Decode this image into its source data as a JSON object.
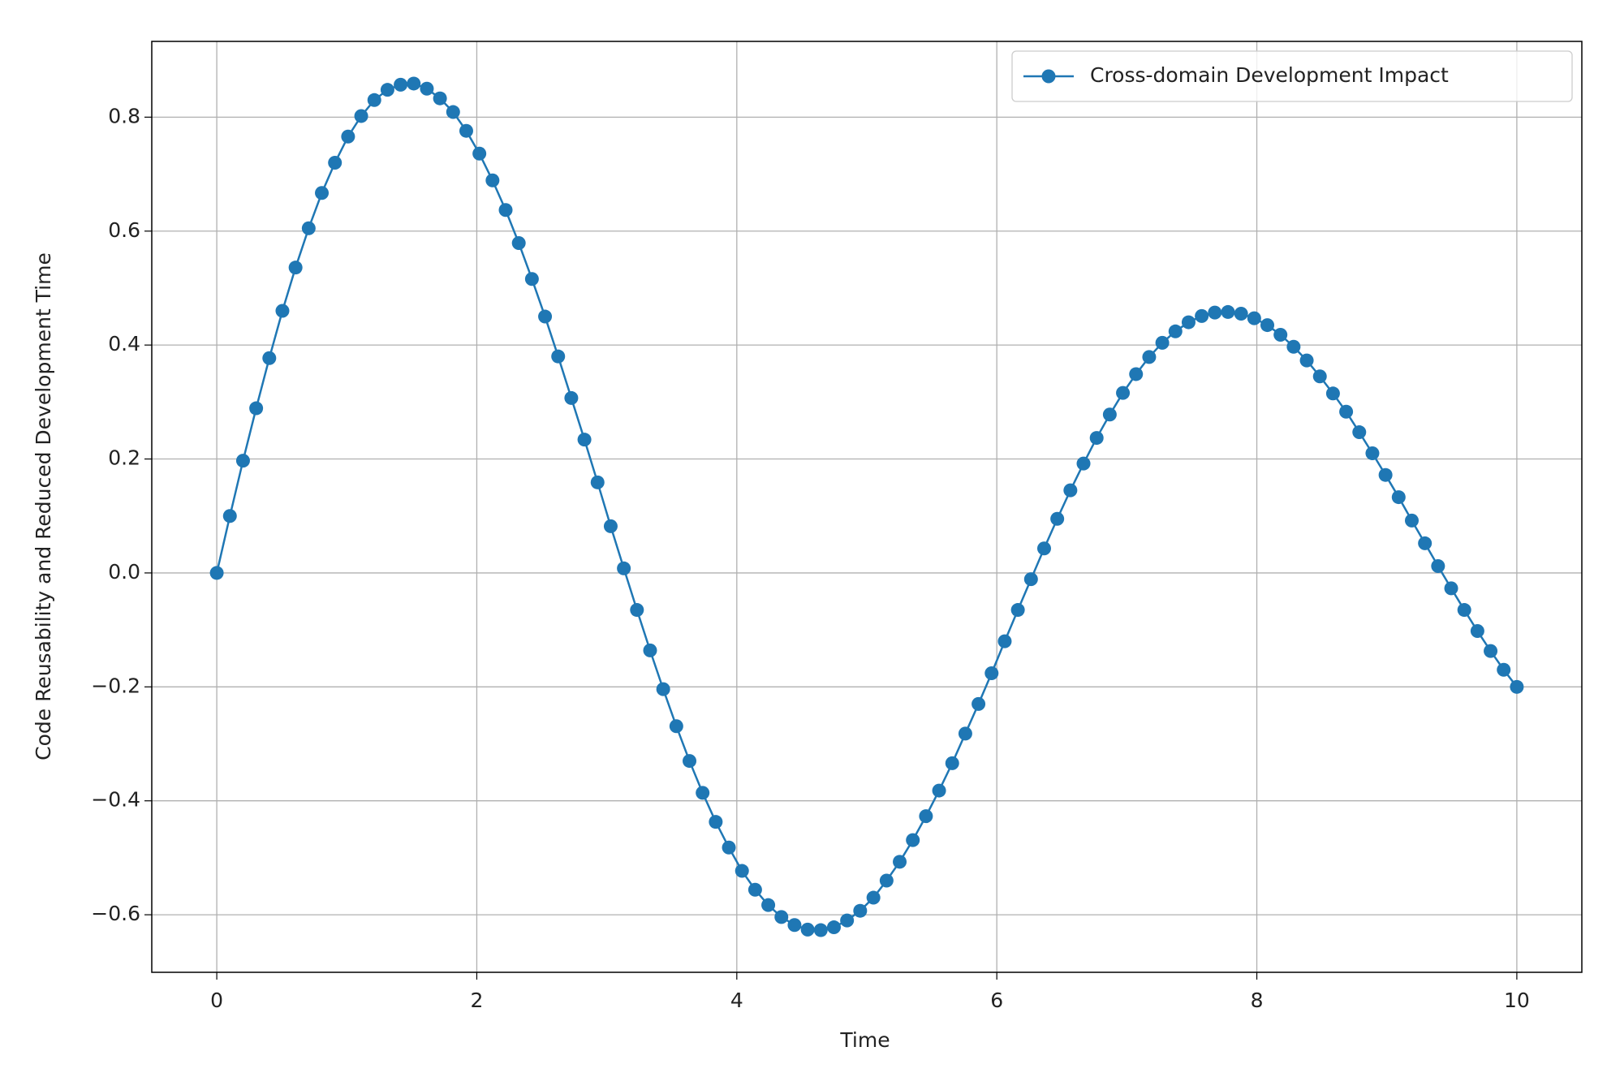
{
  "chart_data": {
    "type": "line",
    "xlabel": "Time",
    "ylabel": "Code Reusability and Reduced Development Time",
    "x": [
      0,
      0.101,
      0.202,
      0.303,
      0.404,
      0.505,
      0.606,
      0.707,
      0.808,
      0.909,
      1.01,
      1.111,
      1.212,
      1.313,
      1.414,
      1.515,
      1.616,
      1.717,
      1.818,
      1.919,
      2.02,
      2.121,
      2.222,
      2.323,
      2.424,
      2.525,
      2.626,
      2.727,
      2.828,
      2.929,
      3.03,
      3.131,
      3.232,
      3.333,
      3.434,
      3.535,
      3.636,
      3.737,
      3.838,
      3.939,
      4.04,
      4.141,
      4.242,
      4.343,
      4.444,
      4.545,
      4.646,
      4.747,
      4.848,
      4.949,
      5.051,
      5.152,
      5.253,
      5.354,
      5.455,
      5.556,
      5.657,
      5.758,
      5.859,
      5.96,
      6.061,
      6.162,
      6.263,
      6.364,
      6.465,
      6.566,
      6.667,
      6.768,
      6.869,
      6.97,
      7.071,
      7.172,
      7.273,
      7.374,
      7.475,
      7.576,
      7.677,
      7.778,
      7.879,
      7.98,
      8.081,
      8.182,
      8.283,
      8.384,
      8.485,
      8.586,
      8.687,
      8.788,
      8.889,
      8.99,
      9.091,
      9.192,
      9.293,
      9.394,
      9.495,
      9.596,
      9.697,
      9.798,
      9.899,
      10
    ],
    "series": [
      {
        "name": "Cross-domain Development Impact",
        "color": "#1f77b4",
        "marker": "o",
        "values": [
          0,
          0.1,
          0.197,
          0.289,
          0.377,
          0.46,
          0.536,
          0.605,
          0.667,
          0.72,
          0.766,
          0.802,
          0.83,
          0.848,
          0.857,
          0.859,
          0.85,
          0.833,
          0.809,
          0.776,
          0.736,
          0.689,
          0.637,
          0.579,
          0.516,
          0.45,
          0.38,
          0.307,
          0.234,
          0.159,
          0.082,
          0.008,
          -0.065,
          -0.136,
          -0.204,
          -0.269,
          -0.33,
          -0.386,
          -0.437,
          -0.482,
          -0.523,
          -0.556,
          -0.583,
          -0.604,
          -0.618,
          -0.626,
          -0.627,
          -0.622,
          -0.61,
          -0.593,
          -0.57,
          -0.54,
          -0.507,
          -0.469,
          -0.427,
          -0.382,
          -0.334,
          -0.282,
          -0.23,
          -0.176,
          -0.12,
          -0.065,
          -0.011,
          0.043,
          0.095,
          0.145,
          0.192,
          0.237,
          0.278,
          0.316,
          0.349,
          0.379,
          0.404,
          0.424,
          0.44,
          0.451,
          0.457,
          0.458,
          0.455,
          0.447,
          0.435,
          0.418,
          0.397,
          0.373,
          0.345,
          0.315,
          0.283,
          0.247,
          0.21,
          0.172,
          0.133,
          0.092,
          0.052,
          0.012,
          -0.027,
          -0.065,
          -0.102,
          -0.137,
          -0.17,
          -0.2
        ]
      }
    ],
    "xlim": [
      -0.5,
      10.5
    ],
    "xticks": [
      0,
      2,
      4,
      6,
      8,
      10
    ],
    "ylim": [
      -0.701,
      0.933
    ],
    "yticks": [
      {
        "value": -0.6,
        "label": "−0.6"
      },
      {
        "value": -0.4,
        "label": "−0.4"
      },
      {
        "value": -0.2,
        "label": "−0.2"
      },
      {
        "value": 0,
        "label": "0.0"
      },
      {
        "value": 0.2,
        "label": "0.2"
      },
      {
        "value": 0.4,
        "label": "0.4"
      },
      {
        "value": 0.6,
        "label": "0.6"
      },
      {
        "value": 0.8,
        "label": "0.8"
      }
    ],
    "grid": true,
    "legend": "upper right"
  }
}
